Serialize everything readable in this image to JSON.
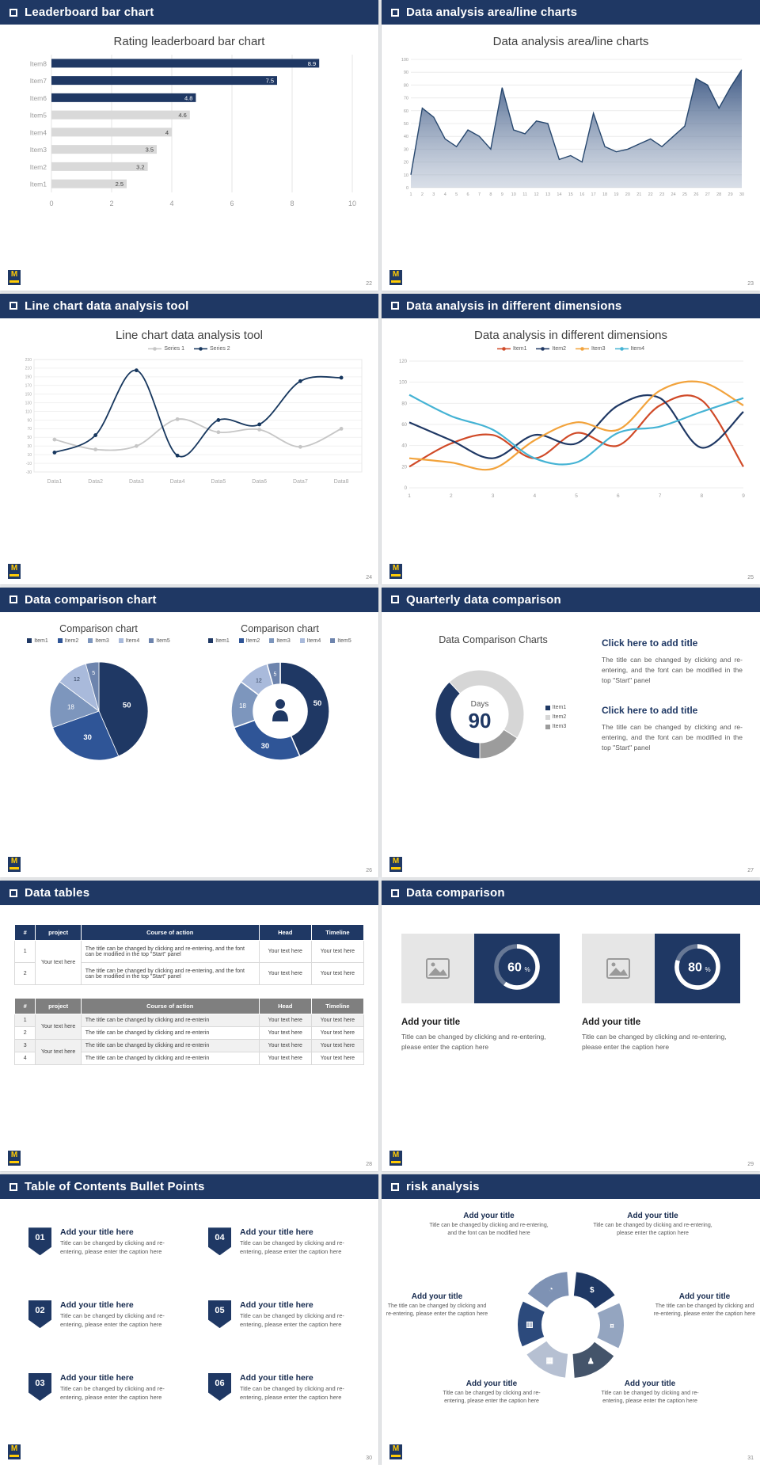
{
  "theme": {
    "navy": "#1f3864",
    "muted_gray": "#d9d9d9",
    "logo_yellow": "#ffcb05"
  },
  "footer": {
    "logo_text": "M"
  },
  "slides": [
    {
      "header": "Leaderboard bar chart",
      "page": "22",
      "chart": {
        "type": "bar",
        "orientation": "horizontal",
        "title": "Rating leaderboard bar chart",
        "categories": [
          "Item8",
          "Item7",
          "Item6",
          "Item5",
          "Item4",
          "Item3",
          "Item2",
          "Item1"
        ],
        "values": [
          8.9,
          7.5,
          4.8,
          4.6,
          4,
          3.5,
          3.2,
          2.5
        ],
        "xlim": [
          0,
          10
        ],
        "xticks": [
          0,
          2,
          4,
          6,
          8,
          10
        ],
        "highlight_count": 3,
        "colors": {
          "bar": "#1f3864",
          "muted": "#d9d9d9"
        }
      }
    },
    {
      "header": "Data analysis area/line charts",
      "page": "23",
      "chart": {
        "type": "area",
        "title": "Data analysis area/line charts",
        "x": [
          1,
          2,
          3,
          4,
          5,
          6,
          7,
          8,
          9,
          10,
          11,
          12,
          13,
          14,
          15,
          16,
          17,
          18,
          19,
          20,
          21,
          22,
          23,
          24,
          25,
          26,
          27,
          28,
          29,
          30
        ],
        "values": [
          10,
          62,
          55,
          38,
          32,
          45,
          40,
          30,
          78,
          45,
          42,
          52,
          50,
          22,
          25,
          20,
          58,
          32,
          28,
          30,
          34,
          38,
          32,
          40,
          48,
          85,
          80,
          62,
          78,
          92
        ],
        "ylim": [
          0,
          100
        ],
        "ytick_step": 10,
        "line_color": "#27476e"
      }
    },
    {
      "header": "Line chart data analysis tool",
      "page": "24",
      "chart": {
        "type": "line",
        "title": "Line chart data analysis tool",
        "categories": [
          "Data1",
          "Data2",
          "Data3",
          "Data4",
          "Data5",
          "Data6",
          "Data7",
          "Data8"
        ],
        "ylim": [
          -30,
          230
        ],
        "ytick_step": 20,
        "series": [
          {
            "name": "Series 1",
            "color": "#c6c6c6",
            "values": [
              45,
              22,
              30,
              92,
              62,
              68,
              28,
              70
            ]
          },
          {
            "name": "Series 2",
            "color": "#17375e",
            "values": [
              15,
              55,
              205,
              8,
              90,
              80,
              180,
              188
            ]
          }
        ]
      }
    },
    {
      "header": "Data analysis in different dimensions",
      "page": "25",
      "chart": {
        "type": "line",
        "title": "Data analysis in different dimensions",
        "x": [
          1,
          2,
          3,
          4,
          5,
          6,
          7,
          8,
          9
        ],
        "ylim": [
          0,
          120
        ],
        "ytick_step": 20,
        "series": [
          {
            "name": "Item1",
            "color": "#d04a28",
            "values": [
              20,
              42,
              50,
              28,
              52,
              40,
              78,
              83,
              20
            ]
          },
          {
            "name": "Item2",
            "color": "#1f3864",
            "values": [
              62,
              45,
              28,
              50,
              42,
              78,
              85,
              38,
              72
            ]
          },
          {
            "name": "Item3",
            "color": "#f2a33c",
            "values": [
              28,
              24,
              18,
              45,
              62,
              55,
              92,
              100,
              78
            ]
          },
          {
            "name": "Item4",
            "color": "#45b3d4",
            "values": [
              88,
              68,
              55,
              28,
              24,
              52,
              58,
              72,
              85
            ]
          }
        ]
      }
    },
    {
      "header": "Data comparison chart",
      "page": "26",
      "charts": [
        {
          "type": "pie",
          "title": "Comparison chart",
          "labels": [
            "Item1",
            "Item2",
            "Item3",
            "Item4",
            "Item5"
          ],
          "values": [
            50,
            30,
            18,
            12,
            5
          ],
          "colors": [
            "#1f3864",
            "#2f5597",
            "#7d96bd",
            "#a9badb",
            "#6d84ad"
          ],
          "label_colors": [
            "#ffffff",
            "#ffffff",
            "#ffffff",
            "#2b3b55",
            "#ffffff"
          ]
        },
        {
          "type": "donut",
          "title": "Comparison chart",
          "labels": [
            "Item1",
            "Item2",
            "Item3",
            "Item4",
            "Item5"
          ],
          "values": [
            50,
            30,
            18,
            12,
            5
          ],
          "colors": [
            "#1f3864",
            "#2f5597",
            "#7d96bd",
            "#a9badb",
            "#6d84ad"
          ],
          "label_colors": [
            "#ffffff",
            "#ffffff",
            "#ffffff",
            "#2b3b55",
            "#ffffff"
          ],
          "center_icon": "presenter-icon"
        }
      ]
    },
    {
      "header": "Quarterly data comparison",
      "page": "27",
      "chart": {
        "type": "donut",
        "title": "Data Comparison Charts",
        "labels": [
          "Item1",
          "Item2",
          "Item3"
        ],
        "values": [
          38,
          46,
          16
        ],
        "colors": [
          "#1f3864",
          "#d6d6d6",
          "#9c9c9c"
        ],
        "center_label": "Days",
        "center_value": "90"
      },
      "text_blocks": [
        {
          "title": "Click here to add title",
          "body": "The title can be changed by clicking and re-entering, and the font can be modified in the top \"Start\" panel"
        },
        {
          "title": "Click here to add title",
          "body": "The title can be changed by clicking and re-entering, and the font can be modified in the top \"Start\" panel"
        }
      ]
    },
    {
      "header": "Data tables",
      "page": "28",
      "tables": [
        {
          "style": "navy",
          "col_widths": [
            "6%",
            "13%",
            "51%",
            "15%",
            "15%"
          ],
          "headers": [
            "#",
            "project",
            "Course of action",
            "Head",
            "Timeline"
          ],
          "project_groups": [
            {
              "label": "Your text here",
              "span": 2
            }
          ],
          "rows": [
            {
              "num": "1",
              "course": "The title can be changed by clicking and re-entering, and the font can be modified in the top \"Start\" panel",
              "head": "Your text here",
              "timeline": "Your text here"
            },
            {
              "num": "2",
              "course": "The title can be changed by clicking and re-entering, and the font can be modified in the top \"Start\" panel",
              "head": "Your text here",
              "timeline": "Your text here"
            }
          ]
        },
        {
          "style": "gray",
          "col_widths": [
            "6%",
            "13%",
            "51%",
            "15%",
            "15%"
          ],
          "headers": [
            "#",
            "project",
            "Course of action",
            "Head",
            "Timeline"
          ],
          "project_groups": [
            {
              "label": "Your text here",
              "span": 2
            },
            {
              "label": "Your text here",
              "span": 2
            }
          ],
          "rows": [
            {
              "num": "1",
              "course": "The title can be changed by clicking and re-enterin",
              "head": "Your text here",
              "timeline": "Your text here"
            },
            {
              "num": "2",
              "course": "The title can be changed by clicking and re-enterin",
              "head": "Your text here",
              "timeline": "Your text here"
            },
            {
              "num": "3",
              "course": "The title can be changed by clicking and re-enterin",
              "head": "Your text here",
              "timeline": "Your text here"
            },
            {
              "num": "4",
              "course": "The title can be changed by clicking and re-enterin",
              "head": "Your text here",
              "timeline": "Your text here"
            }
          ]
        }
      ]
    },
    {
      "header": "Data comparison",
      "page": "29",
      "cards": [
        {
          "percent": 60,
          "title": "Add your title",
          "caption": "Title can be changed by clicking and re-entering, please enter the caption here"
        },
        {
          "percent": 80,
          "title": "Add your title",
          "caption": "Title can be changed by clicking and re-entering, please enter the caption here"
        }
      ]
    },
    {
      "header": "Table of Contents Bullet Points",
      "page": "30",
      "items": [
        {
          "num": "01",
          "title": "Add your title here",
          "caption": "Title can be changed by clicking and re-entering, please enter the caption here"
        },
        {
          "num": "02",
          "title": "Add your title here",
          "caption": "Title can be changed by clicking and re-entering, please enter the caption here"
        },
        {
          "num": "03",
          "title": "Add your title here",
          "caption": "Title can be changed by clicking and re-entering, please enter the caption here"
        },
        {
          "num": "04",
          "title": "Add your title here",
          "caption": "Title can be changed by clicking and re-entering, please enter the caption here"
        },
        {
          "num": "05",
          "title": "Add your title here",
          "caption": "Title can be changed by clicking and re-entering, please enter the caption here"
        },
        {
          "num": "06",
          "title": "Add your title here",
          "caption": "Title can be changed by clicking and re-entering, please enter the caption here"
        }
      ]
    },
    {
      "header": "risk analysis",
      "page": "31",
      "diagram": {
        "segment_colors": [
          "#1f3864",
          "#94a5c0",
          "#44546a",
          "#b6c0d2",
          "#2c4a7c",
          "#7e92b4"
        ],
        "icons": [
          "money-bag",
          "coins",
          "people",
          "chart",
          "building",
          "pie"
        ],
        "labels": [
          {
            "pos": "tl",
            "title": "Add your title",
            "caption": "Title can be changed by clicking and re-entering, and the font can be modified here"
          },
          {
            "pos": "tr",
            "title": "Add your title",
            "caption": "Title can be changed by clicking and re-entering, please enter the caption here"
          },
          {
            "pos": "l",
            "title": "Add your title",
            "caption": "The title can be changed by clicking and re-entering, please enter the caption here"
          },
          {
            "pos": "r",
            "title": "Add your title",
            "caption": "The title can be changed by clicking and re-entering, please enter the caption here"
          },
          {
            "pos": "bl",
            "title": "Add your title",
            "caption": "Title can be changed by clicking and re-entering, please enter the caption here"
          },
          {
            "pos": "br",
            "title": "Add your title",
            "caption": "Title can be changed by clicking and re-entering, please enter the caption here"
          }
        ]
      }
    }
  ]
}
